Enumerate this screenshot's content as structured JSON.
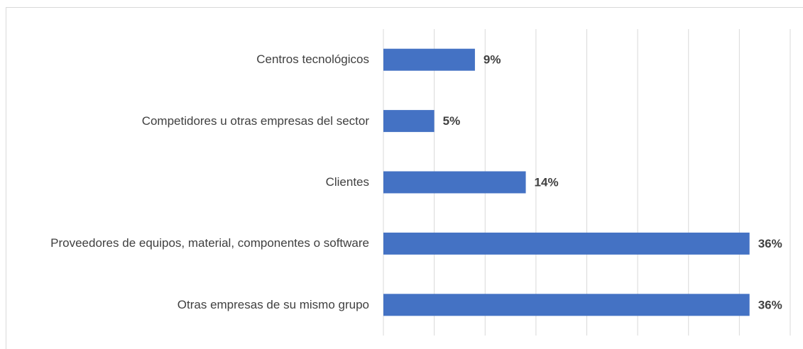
{
  "chart_data": {
    "type": "bar",
    "orientation": "horizontal",
    "categories": [
      "Centros tecnológicos",
      "Competidores u otras empresas del sector",
      "Clientes",
      "Proveedores de equipos, material, componentes o software",
      "Otras empresas de su mismo grupo"
    ],
    "values": [
      9,
      5,
      14,
      36,
      36
    ],
    "value_labels": [
      "9%",
      "5%",
      "14%",
      "36%",
      "36%"
    ],
    "color": "#4472c4",
    "xlim": [
      0,
      40
    ],
    "xticks": [
      0,
      5,
      10,
      15,
      20,
      25,
      30,
      35,
      40
    ],
    "grid": true
  }
}
